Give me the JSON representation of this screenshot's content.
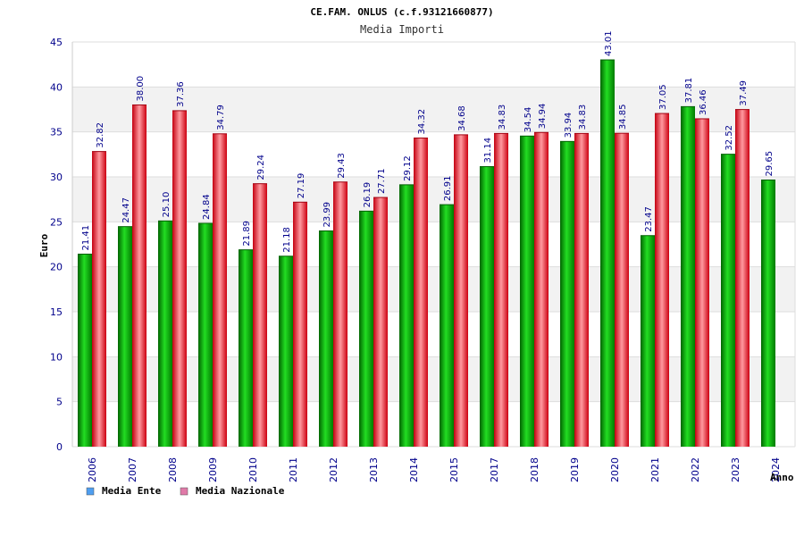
{
  "chart_data": {
    "type": "bar",
    "title": "CE.FAM. ONLUS (c.f.93121660877)",
    "subtitle": "Media Importi",
    "xlabel": "Anno",
    "ylabel": "Euro",
    "ylim": [
      0,
      45
    ],
    "yticks": [
      0,
      5,
      10,
      15,
      20,
      25,
      30,
      35,
      40,
      45
    ],
    "grid": true,
    "legend_position": "bottom-left",
    "categories": [
      "2006",
      "2007",
      "2008",
      "2009",
      "2010",
      "2011",
      "2012",
      "2013",
      "2014",
      "2015",
      "2017",
      "2018",
      "2019",
      "2020",
      "2021",
      "2022",
      "2023",
      "2024"
    ],
    "series": [
      {
        "name": "Media Ente",
        "color": "#00b000",
        "legend_color": "#4f9ef0",
        "values": [
          21.41,
          24.47,
          25.1,
          24.84,
          21.89,
          21.18,
          23.99,
          26.19,
          29.12,
          26.91,
          31.14,
          34.54,
          33.94,
          43.01,
          23.47,
          37.81,
          32.52,
          29.65
        ]
      },
      {
        "name": "Media Nazionale",
        "color": "#e8202a",
        "legend_color": "#e07aa8",
        "values": [
          32.82,
          38.0,
          37.36,
          34.79,
          29.24,
          27.19,
          29.43,
          27.71,
          34.32,
          34.68,
          34.83,
          34.94,
          34.83,
          34.85,
          37.05,
          36.46,
          37.49,
          null
        ]
      }
    ]
  }
}
